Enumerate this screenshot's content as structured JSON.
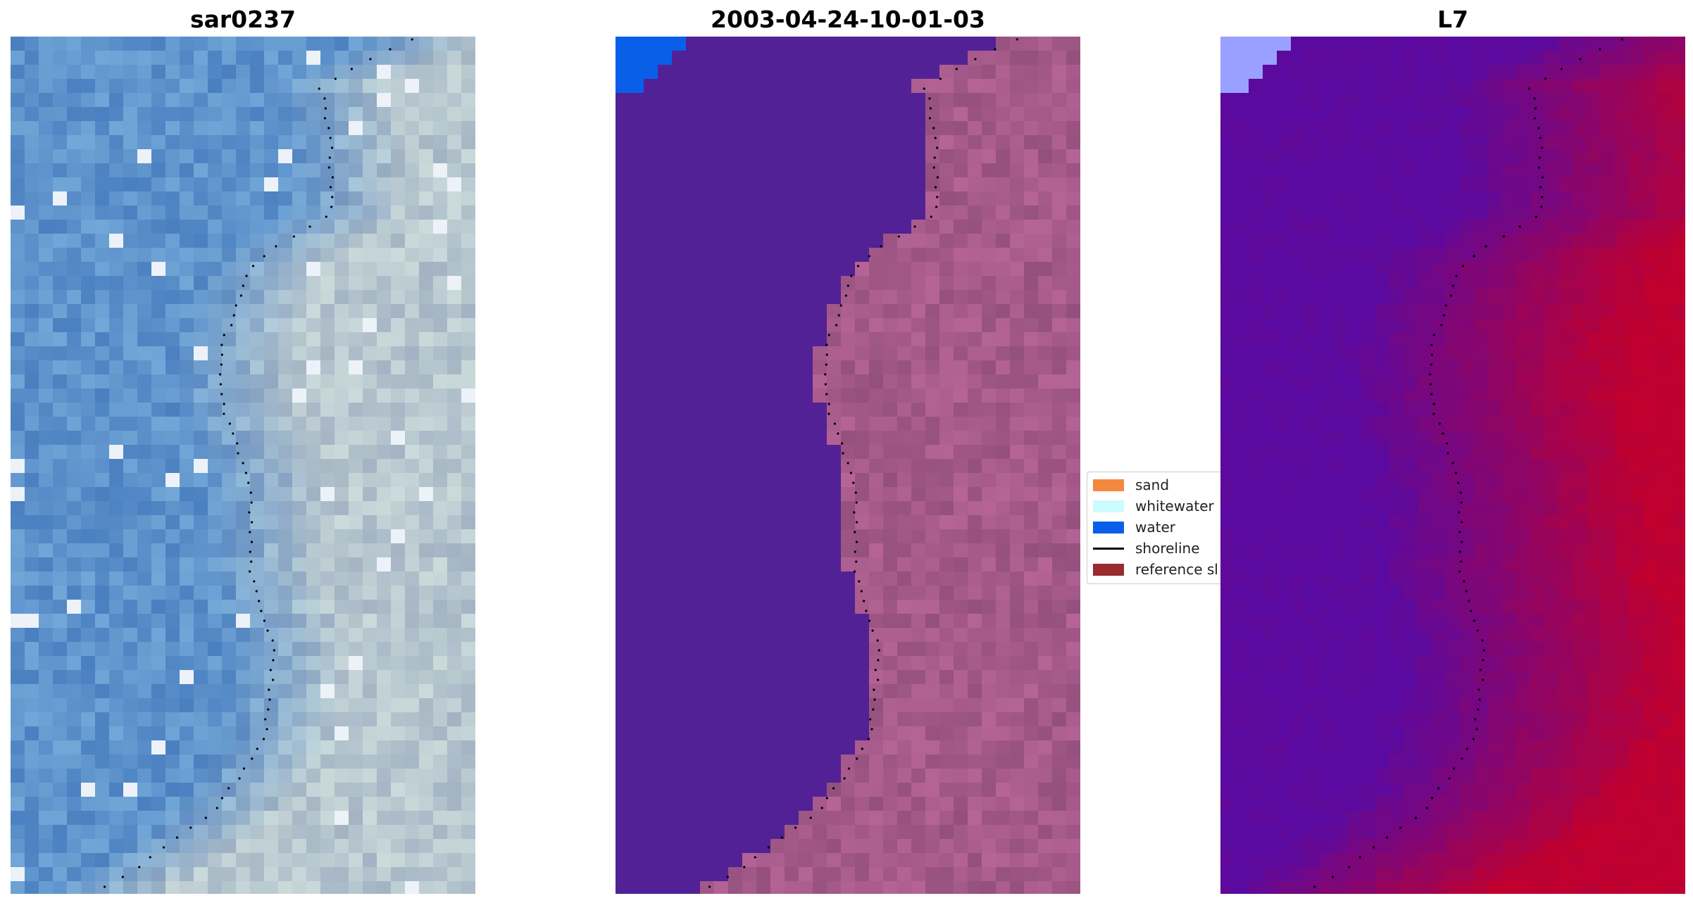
{
  "panels": [
    {
      "id": "rgb",
      "title": "sar0237",
      "palette": "rgb"
    },
    {
      "id": "classified",
      "title": "2003-04-24-10-01-03",
      "palette": "classified"
    },
    {
      "id": "index",
      "title": "L7",
      "palette": "index"
    }
  ],
  "legend": {
    "items": [
      {
        "label": "sand",
        "color": "#f4883f",
        "kind": "patch"
      },
      {
        "label": "whitewater",
        "color": "#ccfcff",
        "kind": "patch"
      },
      {
        "label": "water",
        "color": "#0a5fe8",
        "kind": "patch"
      },
      {
        "label": "shoreline",
        "color": "#000000",
        "kind": "line"
      },
      {
        "label": "reference sl",
        "color": "#992b2e",
        "kind": "patch"
      }
    ]
  },
  "colors": {
    "classified_water": "#532196",
    "classified_water_corner": "#0a5fe8",
    "classified_land": "#a55a8a",
    "index_low": "#5a0aa0",
    "index_high": "#c0002e",
    "rgb_water": "#5e93cc",
    "rgb_land": "#b7c7cf"
  }
}
